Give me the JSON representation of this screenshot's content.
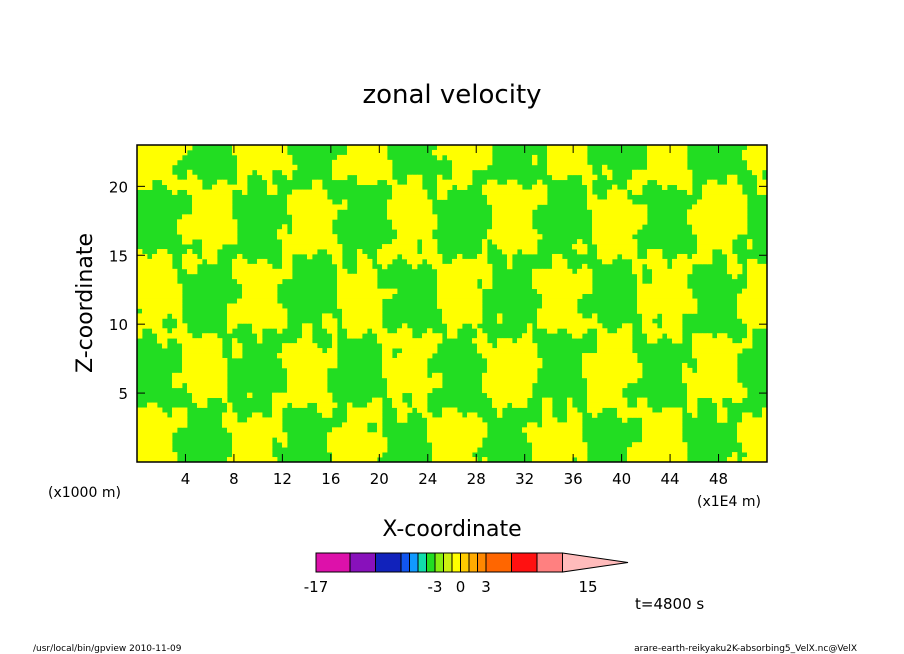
{
  "chart_data": {
    "type": "heatmap",
    "title": "zonal velocity",
    "xlabel": "X-coordinate",
    "ylabel": "Z-coordinate",
    "x_unit_left": "(x1000 m)",
    "x_unit_right": "(x1E4 m)",
    "xlim": [
      0,
      52
    ],
    "ylim": [
      0,
      23
    ],
    "xticks": [
      4,
      8,
      12,
      16,
      20,
      24,
      28,
      32,
      36,
      40,
      44,
      48
    ],
    "yticks": [
      5,
      10,
      15,
      20
    ],
    "time_label": "t=4800 s",
    "colorbar": {
      "min": -17,
      "max": 15,
      "tick_labels": [
        "-17",
        "-3",
        "0",
        "3",
        "15"
      ],
      "tick_values": [
        -17,
        -3,
        0,
        3,
        15
      ],
      "bins": [
        {
          "lo": -17,
          "hi": -13,
          "color": "#dd11aa"
        },
        {
          "lo": -13,
          "hi": -10,
          "color": "#8811bb"
        },
        {
          "lo": -10,
          "hi": -7,
          "color": "#1122bb"
        },
        {
          "lo": -7,
          "hi": -6,
          "color": "#1155ee"
        },
        {
          "lo": -6,
          "hi": -5,
          "color": "#1199ff"
        },
        {
          "lo": -5,
          "hi": -4,
          "color": "#11ddaa"
        },
        {
          "lo": -4,
          "hi": -3,
          "color": "#22dd22"
        },
        {
          "lo": -3,
          "hi": -2,
          "color": "#88ee11"
        },
        {
          "lo": -2,
          "hi": -1,
          "color": "#ccf011"
        },
        {
          "lo": -1,
          "hi": 0,
          "color": "#ffff00"
        },
        {
          "lo": 0,
          "hi": 1,
          "color": "#ffcc00"
        },
        {
          "lo": 1,
          "hi": 2,
          "color": "#ffaa00"
        },
        {
          "lo": 2,
          "hi": 3,
          "color": "#ff8800"
        },
        {
          "lo": 3,
          "hi": 6,
          "color": "#ff6600"
        },
        {
          "lo": 6,
          "hi": 9,
          "color": "#ff1111"
        },
        {
          "lo": 9,
          "hi": 12,
          "color": "#ff8080"
        },
        {
          "lo": 12,
          "hi": 15,
          "color": "#ffbbbb"
        }
      ]
    },
    "field_colors": {
      "negative": "#22dd22",
      "positive": "#ffff00"
    }
  },
  "footer": {
    "left": "/usr/local/bin/gpview  2010-11-09",
    "right": "arare-earth-reikyaku2K-absorbing5_VelX.nc@VelX"
  }
}
